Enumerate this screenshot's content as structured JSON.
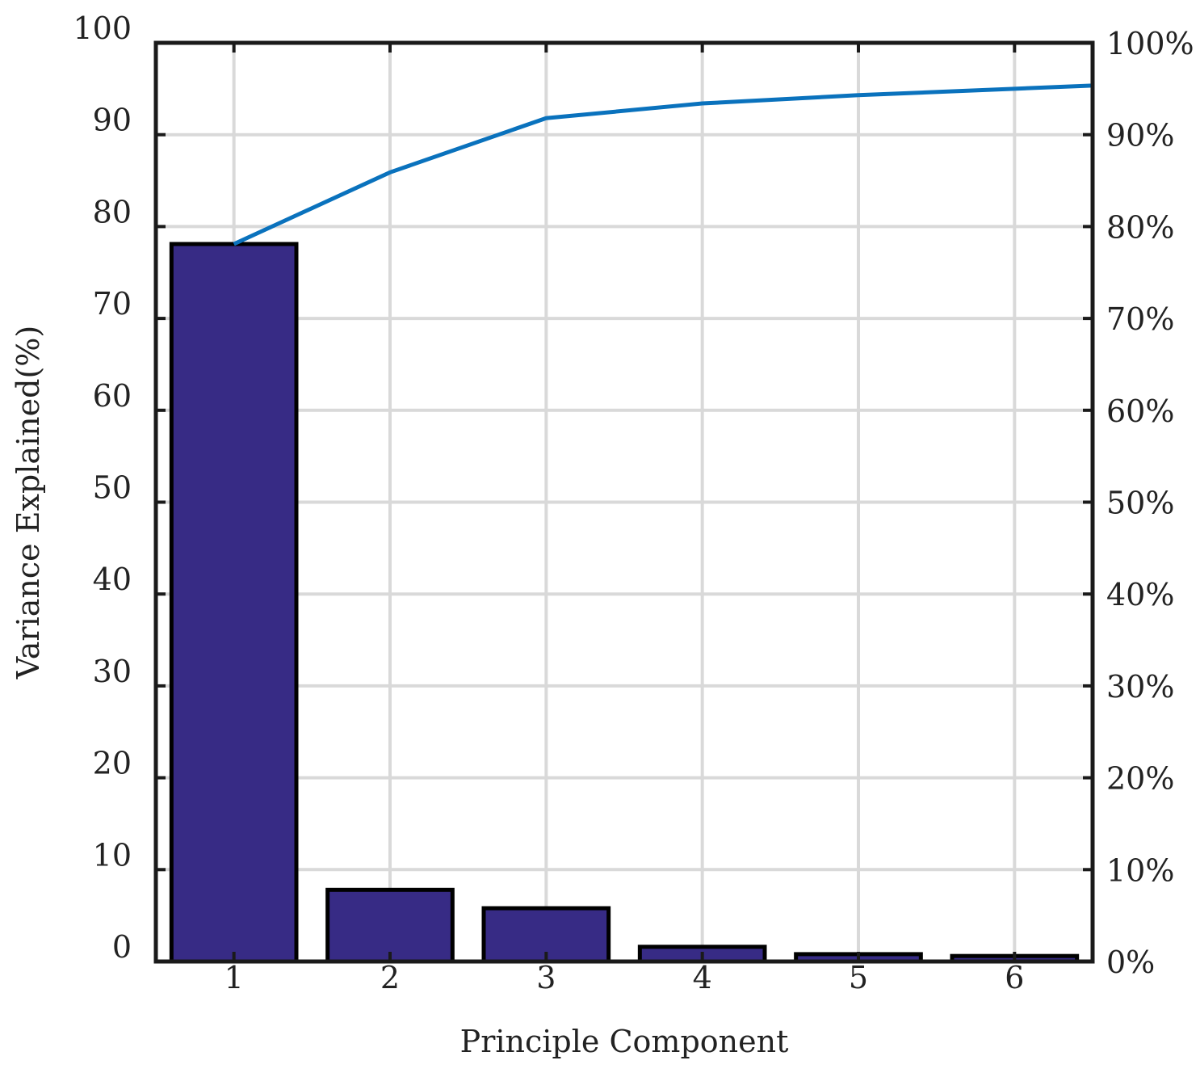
{
  "chart_data": {
    "type": "bar",
    "xlabel": "Principle Component",
    "ylabel": "Variance Explained(%)",
    "categories": [
      "1",
      "2",
      "3",
      "4",
      "5",
      "6"
    ],
    "ylim": [
      0,
      100
    ],
    "y_ticks": [
      "0",
      "10",
      "20",
      "30",
      "40",
      "50",
      "60",
      "70",
      "80",
      "90",
      "100"
    ],
    "y2_ticks": [
      "0%",
      "10%",
      "20%",
      "30%",
      "40%",
      "50%",
      "60%",
      "70%",
      "80%",
      "90%",
      "100%"
    ],
    "grid": true,
    "series": [
      {
        "type": "bar",
        "values": [
          78.1,
          7.8,
          5.8,
          1.6,
          0.8,
          0.6
        ],
        "color": "#372b85"
      },
      {
        "type": "line",
        "values": [
          78.1,
          85.9,
          91.8,
          93.4,
          94.3,
          95.0
        ],
        "color": "#0a72bd"
      }
    ]
  }
}
